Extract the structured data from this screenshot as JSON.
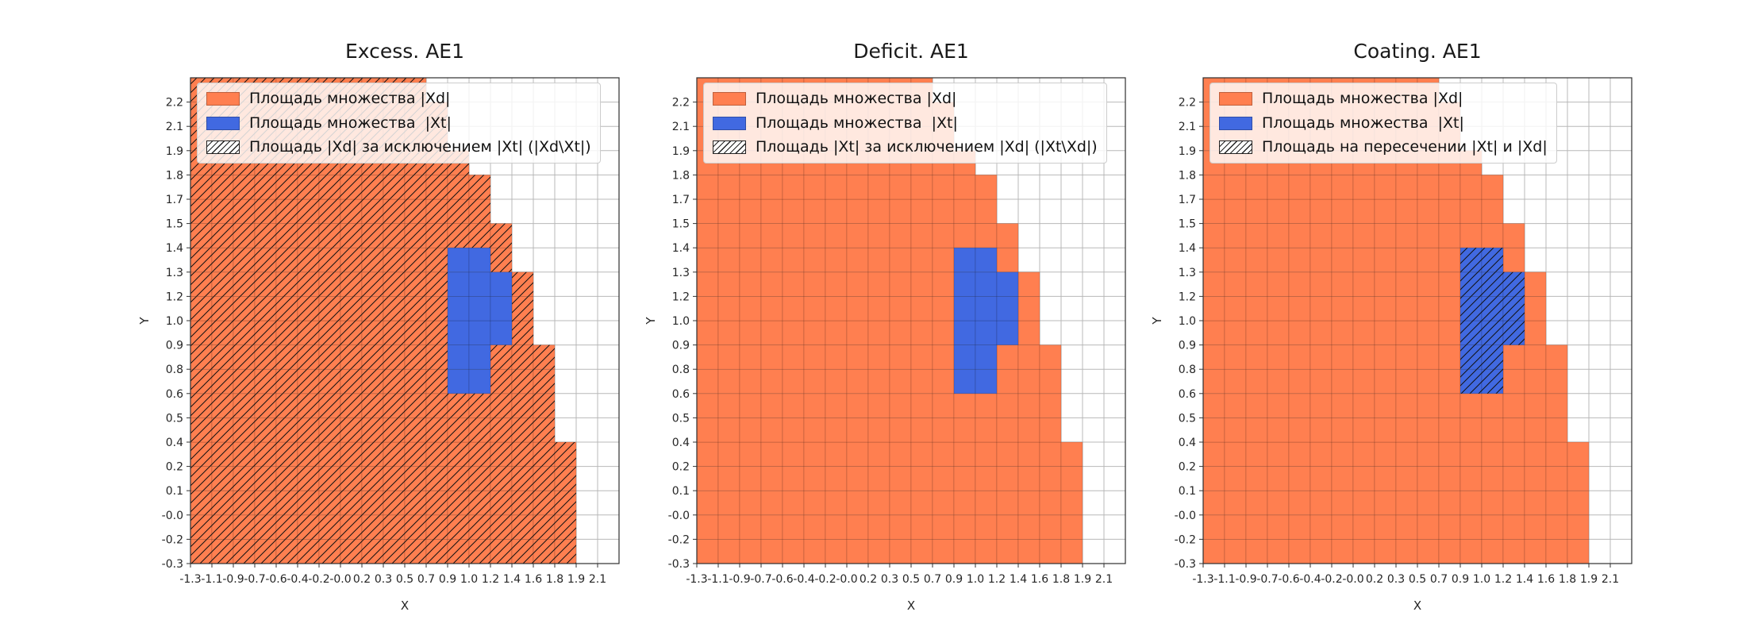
{
  "figure": {
    "background": "#ffffff",
    "subplots": [
      {
        "title": "Excess. AE1",
        "hatch_region": "xd_minus_xt",
        "legend": [
          {
            "swatch": "xd",
            "label": "Площадь множества |Xd|"
          },
          {
            "swatch": "xt",
            "label": "Площадь множества  |Xt|"
          },
          {
            "swatch": "hatch",
            "label": "Площадь |Xd| за исключением |Xt| (|Xd\\Xt|)"
          }
        ]
      },
      {
        "title": "Deficit. AE1",
        "hatch_region": "xt_minus_xd",
        "legend": [
          {
            "swatch": "xd",
            "label": "Площадь множества |Xd|"
          },
          {
            "swatch": "xt",
            "label": "Площадь множества  |Xt|"
          },
          {
            "swatch": "hatch",
            "label": "Площадь |Xt| за исключением |Xd| (|Xt\\Xd|)"
          }
        ]
      },
      {
        "title": "Coating. AE1",
        "hatch_region": "xt_intersect_xd",
        "legend": [
          {
            "swatch": "xd",
            "label": "Площадь множества |Xd|"
          },
          {
            "swatch": "xt",
            "label": "Площадь множества  |Xt|"
          },
          {
            "swatch": "hatch",
            "label": "Площадь на пересечении |Xt| и |Xd|"
          }
        ]
      }
    ]
  },
  "chart_data": {
    "type": "heatmap",
    "description": "Three identical 20x20 cell-grid plots of set Xd (orange, quarter-disc from lower-left corner) and set Xt (blue blob inside Xd); diagonal hatching marks Xd\\Xt, Xt\\Xd (empty) and Xt∩Xd respectively.",
    "titles": [
      "Excess. AE1",
      "Deficit. AE1",
      "Coating. AE1"
    ],
    "xlabel": "X",
    "ylabel": "Y",
    "x_range": [
      -1.3,
      2.28
    ],
    "y_range": [
      -0.3,
      2.33
    ],
    "grid": {
      "cols": 20,
      "rows": 20
    },
    "cell_size_data_units": {
      "dx": 0.1789,
      "dy": 0.1316
    },
    "x_ticks": [
      "-1.3",
      "-1.1",
      "-0.9",
      "-0.7",
      "-0.6",
      "-0.4",
      "-0.2",
      "-0.0",
      "0.2",
      "0.3",
      "0.5",
      "0.7",
      "0.9",
      "1.0",
      "1.2",
      "1.4",
      "1.6",
      "1.8",
      "1.9",
      "2.1"
    ],
    "y_ticks": [
      "-0.3",
      "-0.2",
      "-0.0",
      "0.1",
      "0.2",
      "0.4",
      "0.5",
      "0.6",
      "0.8",
      "0.9",
      "1.0",
      "1.2",
      "1.3",
      "1.4",
      "1.5",
      "1.7",
      "1.8",
      "1.9",
      "2.1",
      "2.2"
    ],
    "xd_max_col_by_row": [
      17,
      17,
      17,
      17,
      17,
      16,
      16,
      16,
      16,
      15,
      15,
      15,
      14,
      14,
      13,
      13,
      12,
      11,
      11,
      10
    ],
    "xt_cells_by_row": [
      {
        "row": 7,
        "cols": [
          12,
          13
        ]
      },
      {
        "row": 8,
        "cols": [
          12,
          13
        ]
      },
      {
        "row": 9,
        "cols": [
          12,
          13,
          14
        ]
      },
      {
        "row": 10,
        "cols": [
          12,
          13,
          14
        ]
      },
      {
        "row": 11,
        "cols": [
          12,
          13,
          14
        ]
      },
      {
        "row": 12,
        "cols": [
          12,
          13
        ]
      }
    ],
    "colors": {
      "xd": "#FF7F50",
      "xt": "#4169E1",
      "grid": "#b8b8b8",
      "hatch": "#111111",
      "cell_edge": "rgba(0,0,0,0.22)",
      "spine": "#2e2e2e",
      "tick_text": "#262626"
    },
    "legend_position": "upper left",
    "grid_on": true
  }
}
